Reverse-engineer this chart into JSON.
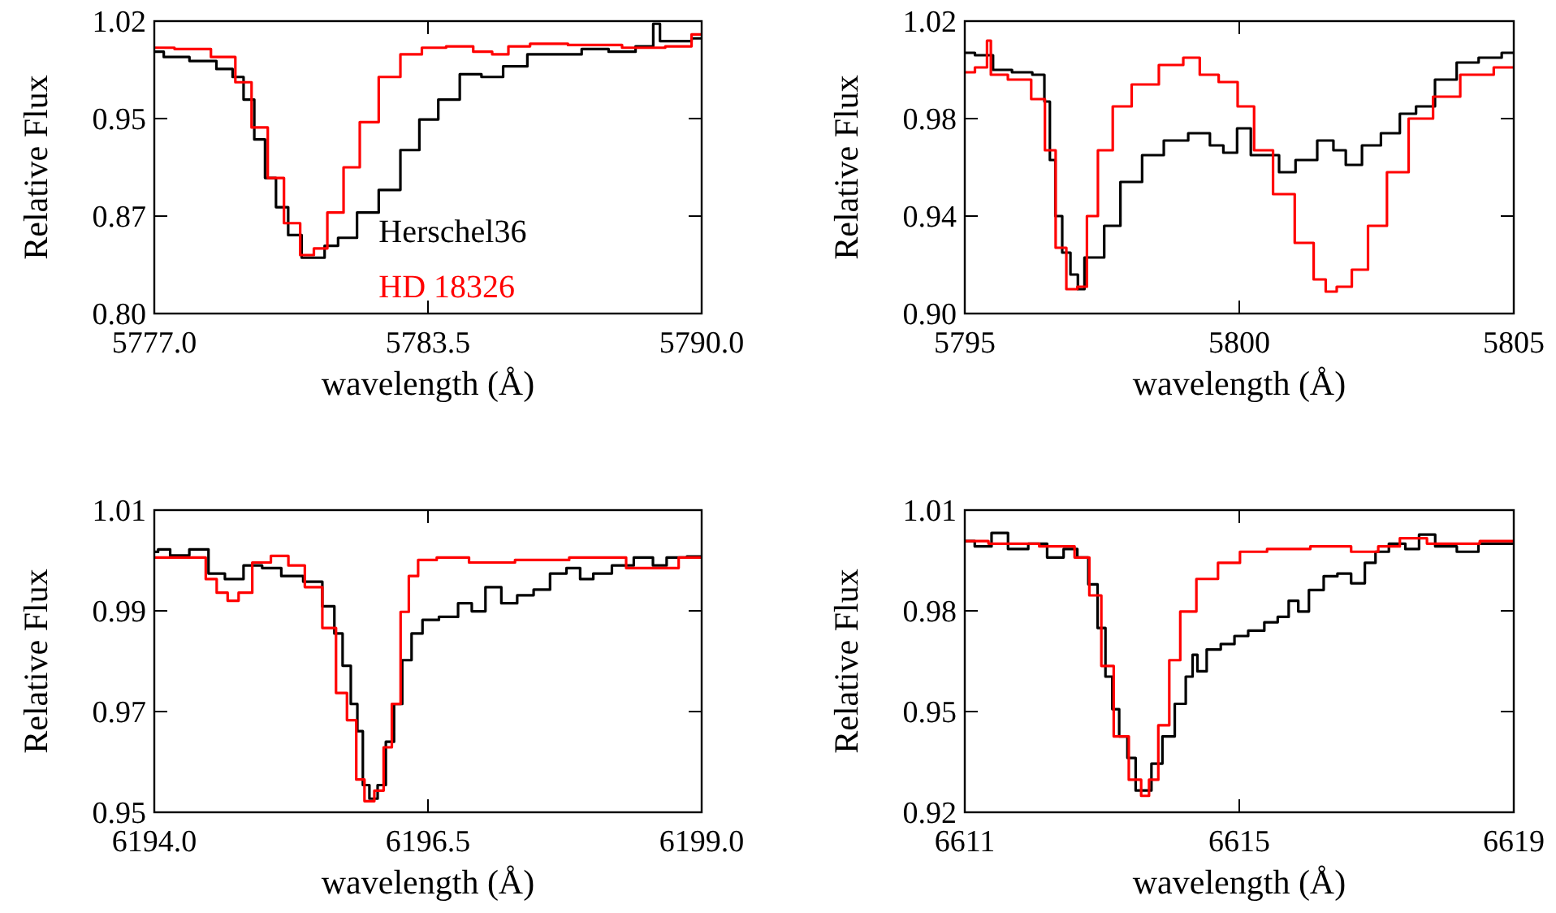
{
  "chart_data": [
    {
      "type": "step",
      "xlabel": "wavelength (Å)",
      "ylabel": "Relative Flux",
      "xlim": [
        5777,
        5790
      ],
      "xticks": [
        {
          "value": 5777,
          "label": "5777.0"
        },
        {
          "value": 5783.5,
          "label": "5783.5"
        },
        {
          "value": 5790,
          "label": "5790.0"
        }
      ],
      "ylim": [
        0.8,
        1.02
      ],
      "yticks": [
        {
          "value": 0.8,
          "label": "0.80"
        },
        {
          "value": 0.8733,
          "label": "0.87"
        },
        {
          "value": 0.9467,
          "label": "0.95"
        },
        1.02
      ],
      "legend": "bottom right",
      "series": [
        {
          "name": "Herschel36",
          "color": "#000000",
          "x": [
            5777.0,
            5777.45,
            5778.22,
            5778.73,
            5778.99,
            5779.25,
            5779.5,
            5779.76,
            5780.02,
            5780.34,
            5780.66,
            5780.92,
            5781.17,
            5781.56,
            5782.07,
            5782.59,
            5783.1,
            5783.49,
            5784.0,
            5784.51,
            5785.03,
            5785.54,
            5786.18,
            5786.83,
            5787.47,
            5788.11,
            5788.75,
            5788.95,
            5789.07,
            5789.52,
            5790.0
          ],
          "values": [
            0.997,
            0.993,
            0.99,
            0.984,
            0.978,
            0.961,
            0.931,
            0.902,
            0.88,
            0.859,
            0.842,
            0.842,
            0.851,
            0.857,
            0.876,
            0.893,
            0.923,
            0.946,
            0.961,
            0.98,
            0.978,
            0.986,
            0.995,
            0.995,
            0.999,
            0.997,
            1.001,
            1.018,
            1.005,
            1.005,
            1.007
          ]
        },
        {
          "name": "HD 18326",
          "color": "#ff0000",
          "x": [
            5777.0,
            5777.96,
            5778.73,
            5779.12,
            5779.5,
            5779.89,
            5780.27,
            5780.66,
            5780.92,
            5781.3,
            5781.69,
            5782.07,
            5782.59,
            5783.1,
            5783.61,
            5784.25,
            5784.9,
            5785.15,
            5785.67,
            5786.18,
            5787.47,
            5788.75,
            5789.52,
            5790.0
          ],
          "values": [
            1.0,
            0.999,
            0.993,
            0.974,
            0.94,
            0.902,
            0.868,
            0.844,
            0.849,
            0.876,
            0.91,
            0.944,
            0.978,
            0.995,
            1.0,
            1.001,
            0.997,
            0.995,
            1.001,
            1.003,
            1.002,
            1.0,
            1.001,
            1.01
          ]
        }
      ]
    },
    {
      "type": "step",
      "xlabel": "wavelength (Å)",
      "ylabel": "Relative Flux",
      "xlim": [
        5795,
        5805
      ],
      "xticks": [
        5795,
        5800,
        5805
      ],
      "ylim": [
        0.9,
        1.02
      ],
      "yticks": [
        {
          "value": 0.9,
          "label": "0.90"
        },
        0.94,
        0.98,
        1.02
      ],
      "series": [
        {
          "color": "#000000",
          "x": [
            5795.0,
            5795.37,
            5795.66,
            5796.06,
            5796.4,
            5796.5,
            5796.6,
            5796.7,
            5796.85,
            5797.0,
            5797.12,
            5797.24,
            5797.44,
            5797.64,
            5798.03,
            5798.43,
            5798.82,
            5799.32,
            5799.61,
            5799.81,
            5800.11,
            5800.31,
            5800.6,
            5800.85,
            5801.2,
            5801.64,
            5801.79,
            5802.09,
            5802.38,
            5802.78,
            5803.07,
            5803.37,
            5803.76,
            5804.16,
            5804.56,
            5805.0
          ],
          "values": [
            1.007,
            1.006,
            1.0,
            0.999,
            0.998,
            0.987,
            0.963,
            0.94,
            0.925,
            0.916,
            0.91,
            0.923,
            0.923,
            0.936,
            0.954,
            0.965,
            0.971,
            0.974,
            0.969,
            0.966,
            0.976,
            0.965,
            0.965,
            0.958,
            0.963,
            0.971,
            0.967,
            0.961,
            0.969,
            0.974,
            0.982,
            0.985,
            0.996,
            1.003,
            1.005,
            1.007
          ]
        },
        {
          "color": "#ff0000",
          "x": [
            5795.0,
            5795.37,
            5795.44,
            5795.51,
            5796.06,
            5796.36,
            5796.56,
            5796.75,
            5796.95,
            5797.15,
            5797.3,
            5797.55,
            5797.84,
            5798.24,
            5798.83,
            5799.13,
            5799.43,
            5799.82,
            5800.12,
            5800.42,
            5800.81,
            5801.21,
            5801.5,
            5801.65,
            5801.9,
            5802.2,
            5802.49,
            5802.89,
            5803.28,
            5803.78,
            5804.27,
            5805.0
          ],
          "values": [
            0.999,
            1.001,
            1.012,
            0.998,
            0.996,
            0.988,
            0.967,
            0.927,
            0.91,
            0.911,
            0.94,
            0.967,
            0.985,
            0.994,
            1.002,
            1.005,
            0.998,
            0.995,
            0.985,
            0.967,
            0.949,
            0.929,
            0.914,
            0.909,
            0.911,
            0.918,
            0.936,
            0.958,
            0.98,
            0.989,
            0.998,
            1.001
          ]
        }
      ]
    },
    {
      "type": "step",
      "xlabel": "wavelength (Å)",
      "ylabel": "Relative Flux",
      "xlim": [
        6194,
        6199
      ],
      "xticks": [
        {
          "value": 6194,
          "label": "6194.0"
        },
        {
          "value": 6196.5,
          "label": "6196.5"
        },
        {
          "value": 6199,
          "label": "6199.0"
        }
      ],
      "ylim": [
        0.95,
        1.01
      ],
      "yticks": [
        0.95,
        0.97,
        0.99,
        1.01
      ],
      "series": [
        {
          "color": "#000000",
          "x": [
            6194.0,
            6194.07,
            6194.22,
            6194.42,
            6194.57,
            6194.72,
            6194.91,
            6195.06,
            6195.26,
            6195.46,
            6195.61,
            6195.68,
            6195.76,
            6195.83,
            6195.88,
            6195.93,
            6196.0,
            6196.08,
            6196.15,
            6196.23,
            6196.3,
            6196.4,
            6196.5,
            6196.7,
            6196.85,
            6196.95,
            6197.1,
            6197.24,
            6197.39,
            6197.54,
            6197.69,
            6197.84,
            6197.94,
            6198.08,
            6198.28,
            6198.48,
            6198.63,
            6198.73,
            6199.0
          ],
          "values": [
            1.0017,
            1.0022,
            1.001,
            1.0022,
            0.9974,
            0.9963,
            0.999,
            0.9985,
            0.9969,
            0.9958,
            0.9909,
            0.9855,
            0.9791,
            0.9715,
            0.9661,
            0.9554,
            0.9527,
            0.9554,
            0.964,
            0.9715,
            0.9802,
            0.9855,
            0.9882,
            0.9888,
            0.9915,
            0.9899,
            0.9947,
            0.9915,
            0.9931,
            0.9942,
            0.9974,
            0.9985,
            0.9963,
            0.9974,
            0.999,
            1.0006,
            0.999,
            1.0006,
            1.0008
          ]
        },
        {
          "color": "#ff0000",
          "x": [
            6194.0,
            6194.42,
            6194.52,
            6194.62,
            6194.72,
            6194.82,
            6194.97,
            6195.16,
            6195.29,
            6195.46,
            6195.61,
            6195.71,
            6195.81,
            6195.88,
            6195.96,
            6196.06,
            6196.13,
            6196.21,
            6196.29,
            6196.36,
            6196.46,
            6196.7,
            6197.05,
            6197.54,
            6198.04,
            6198.58,
            6199.0
          ],
          "values": [
            1.0006,
            1.0006,
            0.9963,
            0.9936,
            0.992,
            0.9936,
            0.9996,
            1.0009,
            0.999,
            0.9947,
            0.9866,
            0.9737,
            0.9683,
            0.9565,
            0.9522,
            0.9543,
            0.9629,
            0.9715,
            0.9898,
            0.9969,
            1.0001,
            1.0006,
            0.9996,
            1.0001,
            1.0006,
            0.9985,
            1.0006
          ]
        }
      ]
    },
    {
      "type": "step",
      "xlabel": "wavelength (Å)",
      "ylabel": "Relative Flux",
      "xlim": [
        6611,
        6619
      ],
      "xticks": [
        6611,
        6615,
        6619
      ],
      "ylim": [
        0.92,
        1.01
      ],
      "yticks": [
        0.92,
        0.95,
        0.98,
        1.01
      ],
      "series": [
        {
          "color": "#000000",
          "x": [
            6611.0,
            6611.29,
            6611.49,
            6611.77,
            6612.08,
            6612.32,
            6612.56,
            6612.72,
            6612.88,
            6612.99,
            6613.11,
            6613.19,
            6613.31,
            6613.43,
            6613.55,
            6613.66,
            6613.78,
            6613.98,
            6614.14,
            6614.3,
            6614.34,
            6614.44,
            6614.61,
            6614.85,
            6615.01,
            6615.25,
            6615.48,
            6615.64,
            6615.8,
            6615.92,
            6616.11,
            6616.35,
            6616.51,
            6616.75,
            6616.91,
            6617.06,
            6617.3,
            6617.54,
            6617.7,
            6618.01,
            6618.33,
            6618.64,
            6619.0
          ],
          "values": [
            1.0008,
            0.9992,
            1.0032,
            0.9984,
            1.0,
            0.9959,
            0.9984,
            0.9959,
            0.9879,
            0.9749,
            0.9604,
            0.9507,
            0.9426,
            0.9362,
            0.9265,
            0.9265,
            0.9345,
            0.9426,
            0.9523,
            0.9604,
            0.9669,
            0.962,
            0.9685,
            0.9701,
            0.9725,
            0.9741,
            0.9766,
            0.9782,
            0.983,
            0.9798,
            0.9862,
            0.9903,
            0.9911,
            0.9882,
            0.9943,
            0.9976,
            1.0,
            0.9984,
            1.0027,
            0.9992,
            0.9976,
            1.0,
            1.0
          ]
        },
        {
          "color": "#ff0000",
          "x": [
            6611.0,
            6611.69,
            6612.48,
            6612.72,
            6612.91,
            6613.07,
            6613.27,
            6613.51,
            6613.63,
            6613.74,
            6613.9,
            6614.06,
            6614.22,
            6614.53,
            6614.85,
            6615.17,
            6615.64,
            6616.43,
            6616.83,
            6617.22,
            6617.46,
            6618.01,
            6619.0
          ],
          "values": [
            1.0008,
            1.0,
            0.9992,
            0.9959,
            0.9846,
            0.9636,
            0.9426,
            0.9297,
            0.9249,
            0.9297,
            0.9459,
            0.9653,
            0.9798,
            0.9895,
            0.9943,
            0.9976,
            0.9984,
            0.9992,
            0.9976,
            0.9992,
            1.0016,
            1.0,
            1.0008
          ]
        }
      ]
    }
  ]
}
